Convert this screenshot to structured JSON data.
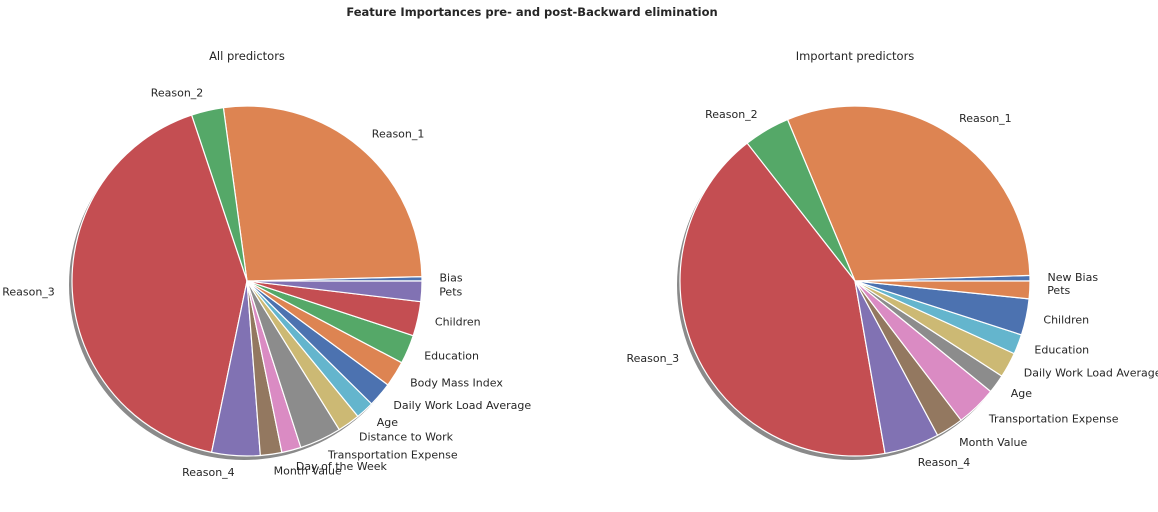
{
  "figure": {
    "suptitle": "Feature Importances pre- and post-Backward elimination"
  },
  "chart_data": [
    {
      "type": "pie",
      "title": "All predictors",
      "start_angle_deg": 0,
      "direction": "counterclockwise",
      "shadow": true,
      "labels": [
        "Bias",
        "Reason_1",
        "Reason_2",
        "Reason_3",
        "Reason_4",
        "Month Value",
        "Day of the Week",
        "Transportation Expense",
        "Distance to Work",
        "Age",
        "Daily Work Load Average",
        "Body Mass Index",
        "Education",
        "Children",
        "Pets"
      ],
      "values": [
        0.4,
        27.0,
        3.0,
        42.0,
        4.5,
        2.0,
        1.8,
        3.9,
        2.1,
        1.7,
        2.3,
        2.4,
        2.7,
        3.2,
        1.9
      ],
      "colors": [
        "#4c72b0",
        "#dd8452",
        "#55a868",
        "#c44e52",
        "#8172b3",
        "#937860",
        "#da8bc3",
        "#8c8c8c",
        "#ccb974",
        "#64b5cd",
        "#4c72b0",
        "#dd8452",
        "#55a868",
        "#c44e52",
        "#8172b3"
      ]
    },
    {
      "type": "pie",
      "title": "Important predictors",
      "start_angle_deg": 0,
      "direction": "counterclockwise",
      "shadow": true,
      "labels": [
        "New Bias",
        "Reason_1",
        "Reason_2",
        "Reason_3",
        "Reason_4",
        "Month Value",
        "Transportation Expense",
        "Age",
        "Daily Work Load Average",
        "Education",
        "Children",
        "Pets"
      ],
      "values": [
        0.5,
        30.3,
        4.2,
        41.5,
        5.0,
        2.5,
        3.7,
        1.7,
        2.3,
        1.8,
        3.3,
        1.6
      ],
      "colors": [
        "#4c72b0",
        "#dd8452",
        "#55a868",
        "#c44e52",
        "#8172b3",
        "#937860",
        "#da8bc3",
        "#8c8c8c",
        "#ccb974",
        "#64b5cd",
        "#4c72b0",
        "#dd8452"
      ]
    }
  ]
}
